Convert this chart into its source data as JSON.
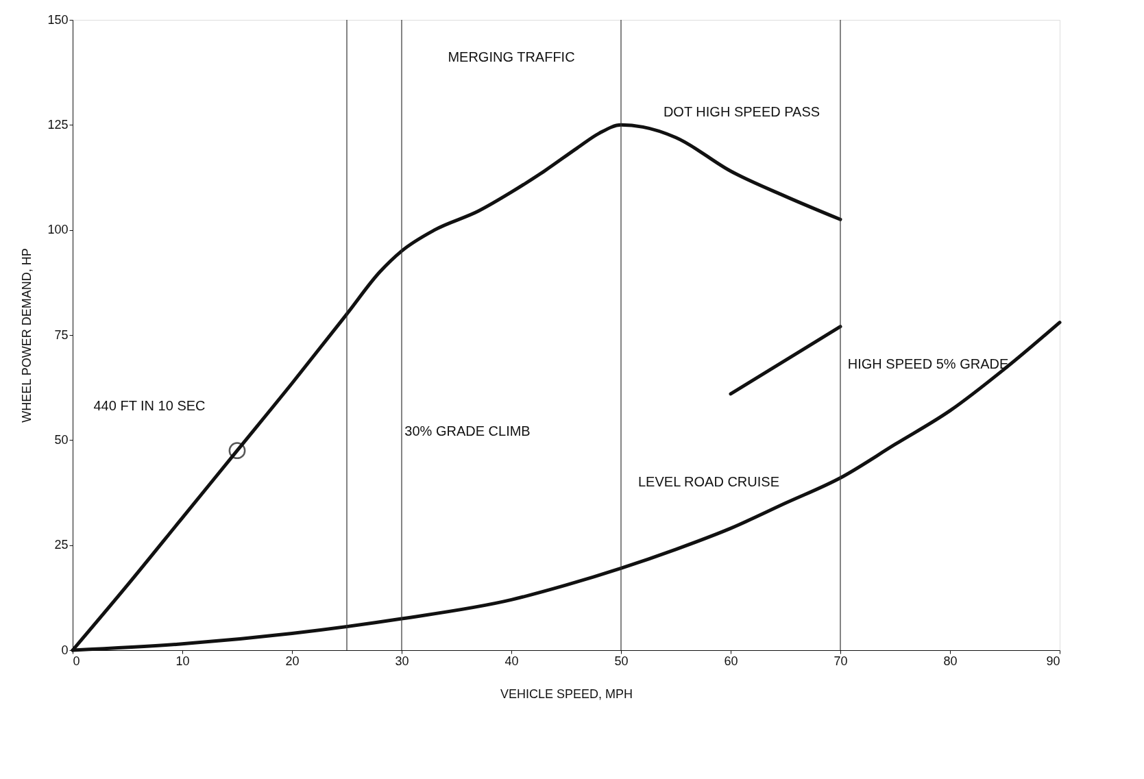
{
  "chart_data": {
    "type": "line",
    "xlabel": "VEHICLE SPEED, MPH",
    "ylabel": "WHEEL POWER DEMAND, HP",
    "xlim": [
      0,
      90
    ],
    "ylim": [
      0,
      150
    ],
    "xticks": [
      0,
      10,
      20,
      30,
      40,
      50,
      60,
      70,
      80,
      90
    ],
    "yticks": [
      0,
      25,
      50,
      75,
      100,
      125,
      150
    ],
    "grid": false,
    "series": [
      {
        "color": "#111111",
        "marker": "none",
        "x": [
          0,
          5,
          10,
          15,
          20,
          25,
          28,
          30,
          33,
          37,
          40,
          43,
          46,
          48,
          50,
          52,
          55,
          60,
          65,
          70
        ],
        "values": [
          0,
          15.5,
          31.5,
          47.5,
          63.5,
          80,
          90,
          95,
          100,
          104.5,
          109,
          114,
          119.5,
          123,
          125,
          124.5,
          122,
          114,
          108,
          102.5
        ]
      },
      {
        "color": "#111111",
        "marker": "none",
        "x": [
          0,
          10,
          20,
          30,
          40,
          45,
          50,
          55,
          60,
          65,
          70,
          75,
          80,
          85,
          90
        ],
        "values": [
          0,
          1.5,
          4,
          7.5,
          12,
          15.5,
          19.5,
          24,
          29,
          35,
          41,
          49,
          57,
          67,
          78
        ]
      },
      {
        "color": "#111111",
        "marker": "none",
        "x": [
          60,
          70
        ],
        "values": [
          61,
          77
        ]
      },
      {
        "type": "scatter",
        "color": "#111111",
        "marker": "circle",
        "x": [
          15
        ],
        "values": [
          47.5
        ]
      }
    ],
    "ref_lines": [
      {
        "axis": "x",
        "value": 25
      },
      {
        "axis": "x",
        "value": 30
      },
      {
        "axis": "x",
        "value": 50
      },
      {
        "axis": "x",
        "value": 70
      }
    ],
    "annotations": [
      "MERGING TRAFFIC",
      "DOT HIGH SPEED PASS",
      "440 FT IN 10 SEC",
      "30% GRADE CLIMB",
      "HIGH SPEED 5% GRADE",
      "LEVEL ROAD CRUISE"
    ]
  }
}
